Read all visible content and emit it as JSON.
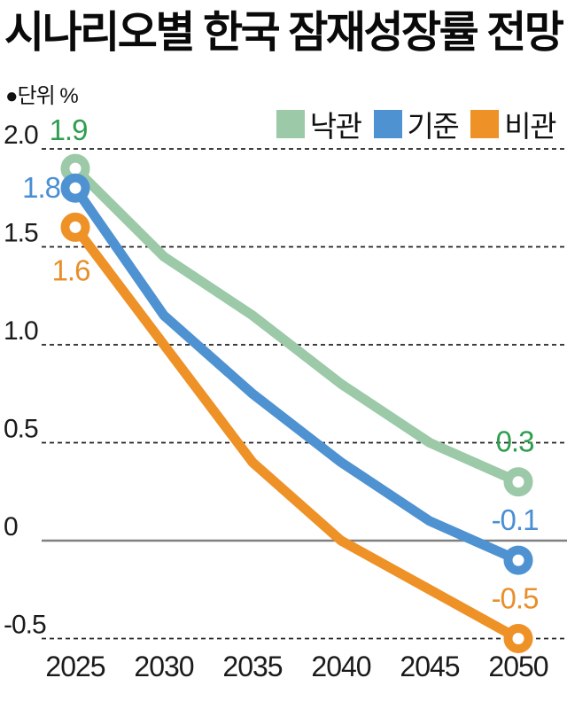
{
  "title": "시나리오별 한국 잠재성장률 전망",
  "unit_note": "●단위 %",
  "colors": {
    "background": "#ffffff",
    "title_text": "#0a0a0a",
    "axis_text": "#1a1a1a",
    "gridline_dashed": "#222222",
    "zero_line": "#808080"
  },
  "chart_data": {
    "type": "line",
    "title": "시나리오별 한국 잠재성장률 전망",
    "unit": "%",
    "x": [
      2025,
      2030,
      2035,
      2040,
      2045,
      2050
    ],
    "xlabels": [
      "2025",
      "2030",
      "2035",
      "2040",
      "2045",
      "2050"
    ],
    "series": [
      {
        "name": "낙관",
        "color": "#9cc9a7",
        "label_color": "#2f9e4e",
        "values": [
          1.9,
          1.45,
          1.15,
          0.8,
          0.5,
          0.3
        ],
        "start_label": "1.9",
        "end_label": "0.3",
        "start_label_pos": "above"
      },
      {
        "name": "기준",
        "color": "#4e92d2",
        "label_color": "#4a8fd3",
        "values": [
          1.8,
          1.15,
          0.75,
          0.4,
          0.1,
          -0.1
        ],
        "start_label": "1.8",
        "end_label": "-0.1",
        "start_label_pos": "left"
      },
      {
        "name": "비관",
        "color": "#ee9227",
        "label_color": "#e88f2a",
        "values": [
          1.6,
          1.0,
          0.4,
          0.0,
          -0.25,
          -0.5
        ],
        "start_label": "1.6",
        "end_label": "-0.5",
        "start_label_pos": "below"
      }
    ],
    "yticks": [
      {
        "value": 2.0,
        "label": "2.0"
      },
      {
        "value": 1.5,
        "label": "1.5"
      },
      {
        "value": 1.0,
        "label": "1.0"
      },
      {
        "value": 0.5,
        "label": "0.5"
      },
      {
        "value": 0.0,
        "label": "0"
      },
      {
        "value": -0.5,
        "label": "-0.5"
      }
    ],
    "ylim": [
      -0.5,
      2.0
    ],
    "grid": "dashed horizontal lines, solid gray zero line",
    "legend_position": "top-right",
    "legend": [
      "낙관",
      "기준",
      "비관"
    ]
  }
}
